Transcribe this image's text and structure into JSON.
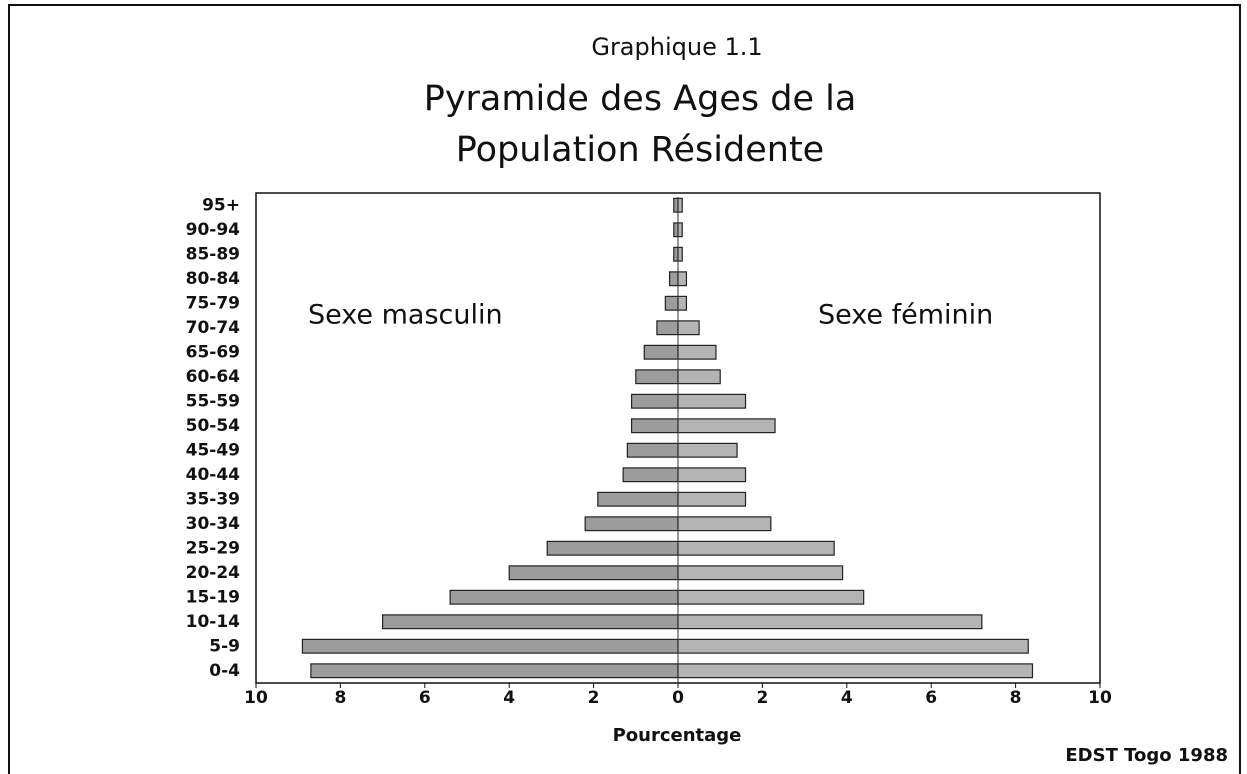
{
  "chart_data": {
    "type": "pyramid",
    "title": "Graphique 1.1",
    "subtitle": [
      "Pyramide des Ages de la",
      "Population Résidente"
    ],
    "xlabel": "Pourcentage",
    "source": "EDST Togo 1988",
    "annotations": [
      "Sexe masculin",
      "Sexe féminin"
    ],
    "categories": [
      "0-4",
      "5-9",
      "10-14",
      "15-19",
      "20-24",
      "25-29",
      "30-34",
      "35-39",
      "40-44",
      "45-49",
      "50-54",
      "55-59",
      "60-64",
      "65-69",
      "70-74",
      "75-79",
      "80-84",
      "85-89",
      "90-94",
      "95+"
    ],
    "series": [
      {
        "color": "#9c9c9c",
        "values": [
          8.7,
          8.9,
          7.0,
          5.4,
          4.0,
          3.1,
          2.2,
          1.9,
          1.3,
          1.2,
          1.1,
          1.1,
          1.0,
          0.8,
          0.5,
          0.3,
          0.2,
          0.1,
          0.1,
          0.1
        ]
      },
      {
        "color": "#b4b4b4",
        "values": [
          8.4,
          8.3,
          7.2,
          4.4,
          3.9,
          3.7,
          2.2,
          1.6,
          1.6,
          1.4,
          2.3,
          1.6,
          1.0,
          0.9,
          0.5,
          0.2,
          0.2,
          0.1,
          0.1,
          0.1
        ]
      }
    ],
    "xlim": [
      -10,
      10
    ],
    "xticks": [
      {
        "value": -10,
        "label": "10"
      },
      {
        "value": -8,
        "label": "8"
      },
      {
        "value": -6,
        "label": "6"
      },
      {
        "value": -4,
        "label": "4"
      },
      {
        "value": -2,
        "label": "2"
      },
      0,
      2,
      4,
      6,
      8,
      10
    ]
  }
}
